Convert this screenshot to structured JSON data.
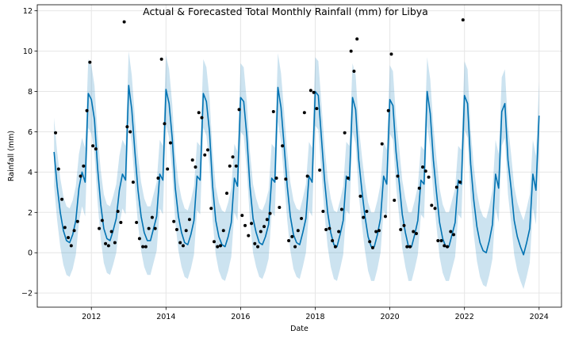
{
  "chart_data": {
    "type": "line",
    "title": "Actual & Forecasted Total Monthly Rainfall (mm) for Libya",
    "xlabel": "Date",
    "ylabel": "Rainfall (mm)",
    "xlim": [
      2010.55,
      2024.6
    ],
    "ylim": [
      -2.7,
      12.3
    ],
    "xticks": [
      2012,
      2014,
      2016,
      2018,
      2020,
      2022,
      2024
    ],
    "yticks": [
      -2,
      0,
      2,
      4,
      6,
      8,
      10,
      12
    ],
    "grid": true,
    "legend": "none",
    "colors": {
      "forecast_line": "#0072B2",
      "interval_band": "#0072B2",
      "actual_points": "#000000",
      "grid": "#e6e6e6"
    },
    "series": [
      {
        "role": "forecast",
        "x_start": 2011.0,
        "step": 0.08333,
        "values": [
          5.0,
          3.3,
          2.0,
          1.1,
          0.6,
          0.5,
          0.9,
          1.6,
          3.2,
          4.0,
          3.5,
          7.9,
          7.6,
          6.6,
          4.2,
          2.4,
          1.2,
          0.7,
          0.6,
          1.1,
          1.7,
          3.1,
          3.9,
          3.6,
          8.3,
          7.1,
          5.0,
          3.1,
          1.8,
          1.0,
          0.6,
          0.6,
          1.2,
          1.8,
          3.9,
          3.6,
          8.1,
          7.4,
          5.7,
          3.2,
          1.8,
          1.0,
          0.5,
          0.4,
          0.9,
          1.6,
          3.8,
          3.6,
          7.9,
          7.5,
          6.0,
          3.3,
          1.6,
          0.8,
          0.4,
          0.3,
          0.8,
          1.5,
          3.7,
          3.3,
          7.7,
          7.5,
          5.8,
          3.3,
          1.7,
          1.0,
          0.5,
          0.4,
          0.8,
          1.4,
          3.7,
          3.5,
          8.2,
          7.2,
          5.3,
          3.3,
          1.8,
          0.9,
          0.5,
          0.4,
          1.0,
          1.7,
          3.8,
          3.5,
          8.0,
          7.8,
          5.7,
          3.6,
          2.0,
          1.0,
          0.4,
          0.3,
          0.9,
          1.6,
          3.8,
          3.6,
          7.7,
          7.1,
          4.6,
          3.1,
          1.8,
          0.8,
          0.3,
          0.3,
          0.9,
          1.7,
          3.8,
          3.4,
          7.6,
          7.3,
          5.0,
          3.5,
          1.9,
          1.0,
          0.3,
          0.3,
          0.9,
          1.6,
          3.6,
          3.4,
          8.0,
          6.9,
          4.6,
          3.0,
          1.5,
          0.7,
          0.3,
          0.3,
          0.9,
          1.5,
          3.6,
          3.4,
          7.8,
          7.4,
          4.4,
          2.6,
          1.3,
          0.5,
          0.1,
          0.0,
          0.6,
          1.4,
          3.9,
          3.2,
          7.0,
          7.4,
          4.6,
          3.2,
          1.6,
          0.8,
          0.3,
          -0.1,
          0.5,
          1.2,
          3.9,
          3.1,
          6.8
        ],
        "band_halfwidth": 1.7
      },
      {
        "role": "actual",
        "points": [
          [
            2011.04,
            5.95
          ],
          [
            2011.12,
            4.15
          ],
          [
            2011.21,
            2.65
          ],
          [
            2011.29,
            1.25
          ],
          [
            2011.38,
            0.75
          ],
          [
            2011.46,
            0.35
          ],
          [
            2011.54,
            1.1
          ],
          [
            2011.63,
            1.55
          ],
          [
            2011.71,
            3.8
          ],
          [
            2011.79,
            4.3
          ],
          [
            2011.88,
            7.05
          ],
          [
            2011.96,
            9.45
          ],
          [
            2012.04,
            5.3
          ],
          [
            2012.12,
            5.15
          ],
          [
            2012.21,
            1.2
          ],
          [
            2012.29,
            1.6
          ],
          [
            2012.38,
            0.45
          ],
          [
            2012.46,
            0.35
          ],
          [
            2012.54,
            1.05
          ],
          [
            2012.63,
            0.5
          ],
          [
            2012.71,
            2.05
          ],
          [
            2012.79,
            1.5
          ],
          [
            2012.88,
            11.45
          ],
          [
            2012.96,
            6.25
          ],
          [
            2013.04,
            6.0
          ],
          [
            2013.12,
            3.5
          ],
          [
            2013.21,
            1.5
          ],
          [
            2013.29,
            0.7
          ],
          [
            2013.38,
            0.3
          ],
          [
            2013.46,
            0.3
          ],
          [
            2013.54,
            1.2
          ],
          [
            2013.63,
            1.75
          ],
          [
            2013.71,
            1.2
          ],
          [
            2013.79,
            3.7
          ],
          [
            2013.88,
            9.6
          ],
          [
            2013.96,
            6.4
          ],
          [
            2014.04,
            4.15
          ],
          [
            2014.12,
            5.45
          ],
          [
            2014.21,
            1.55
          ],
          [
            2014.29,
            1.15
          ],
          [
            2014.38,
            0.5
          ],
          [
            2014.46,
            0.35
          ],
          [
            2014.54,
            1.1
          ],
          [
            2014.63,
            1.65
          ],
          [
            2014.71,
            4.6
          ],
          [
            2014.79,
            4.25
          ],
          [
            2014.88,
            6.95
          ],
          [
            2014.96,
            6.7
          ],
          [
            2015.04,
            4.85
          ],
          [
            2015.12,
            5.1
          ],
          [
            2015.21,
            2.2
          ],
          [
            2015.29,
            0.55
          ],
          [
            2015.38,
            0.3
          ],
          [
            2015.46,
            0.35
          ],
          [
            2015.54,
            1.1
          ],
          [
            2015.63,
            2.95
          ],
          [
            2015.71,
            4.3
          ],
          [
            2015.79,
            4.75
          ],
          [
            2015.88,
            4.3
          ],
          [
            2015.96,
            7.1
          ],
          [
            2016.04,
            1.85
          ],
          [
            2016.12,
            1.35
          ],
          [
            2016.21,
            0.85
          ],
          [
            2016.29,
            1.45
          ],
          [
            2016.38,
            0.45
          ],
          [
            2016.46,
            0.3
          ],
          [
            2016.54,
            1.05
          ],
          [
            2016.63,
            1.3
          ],
          [
            2016.71,
            1.65
          ],
          [
            2016.79,
            1.95
          ],
          [
            2016.88,
            7.0
          ],
          [
            2016.96,
            3.7
          ],
          [
            2017.04,
            2.25
          ],
          [
            2017.12,
            5.3
          ],
          [
            2017.21,
            3.65
          ],
          [
            2017.29,
            0.6
          ],
          [
            2017.38,
            0.8
          ],
          [
            2017.46,
            0.3
          ],
          [
            2017.54,
            1.1
          ],
          [
            2017.63,
            1.7
          ],
          [
            2017.71,
            6.95
          ],
          [
            2017.79,
            3.8
          ],
          [
            2017.88,
            8.05
          ],
          [
            2017.96,
            7.95
          ],
          [
            2018.04,
            7.15
          ],
          [
            2018.12,
            4.1
          ],
          [
            2018.21,
            2.05
          ],
          [
            2018.29,
            1.15
          ],
          [
            2018.38,
            1.2
          ],
          [
            2018.46,
            0.6
          ],
          [
            2018.54,
            0.3
          ],
          [
            2018.63,
            1.05
          ],
          [
            2018.71,
            2.15
          ],
          [
            2018.79,
            5.95
          ],
          [
            2018.88,
            3.7
          ],
          [
            2018.96,
            10.0
          ],
          [
            2019.04,
            9.0
          ],
          [
            2019.12,
            10.6
          ],
          [
            2019.21,
            2.8
          ],
          [
            2019.29,
            1.75
          ],
          [
            2019.38,
            2.05
          ],
          [
            2019.46,
            0.55
          ],
          [
            2019.54,
            0.25
          ],
          [
            2019.63,
            1.05
          ],
          [
            2019.71,
            1.1
          ],
          [
            2019.79,
            5.4
          ],
          [
            2019.88,
            1.8
          ],
          [
            2019.96,
            7.05
          ],
          [
            2020.04,
            9.85
          ],
          [
            2020.12,
            2.6
          ],
          [
            2020.21,
            3.8
          ],
          [
            2020.29,
            1.15
          ],
          [
            2020.38,
            1.35
          ],
          [
            2020.46,
            0.3
          ],
          [
            2020.54,
            0.3
          ],
          [
            2020.63,
            1.05
          ],
          [
            2020.71,
            0.95
          ],
          [
            2020.79,
            3.2
          ],
          [
            2020.88,
            4.25
          ],
          [
            2020.96,
            4.05
          ],
          [
            2021.04,
            3.75
          ],
          [
            2021.12,
            2.35
          ],
          [
            2021.21,
            2.2
          ],
          [
            2021.29,
            0.6
          ],
          [
            2021.38,
            0.6
          ],
          [
            2021.46,
            0.35
          ],
          [
            2021.54,
            0.3
          ],
          [
            2021.63,
            1.05
          ],
          [
            2021.71,
            0.9
          ],
          [
            2021.79,
            3.25
          ],
          [
            2021.88,
            3.5
          ],
          [
            2021.96,
            11.55
          ]
        ]
      }
    ]
  }
}
